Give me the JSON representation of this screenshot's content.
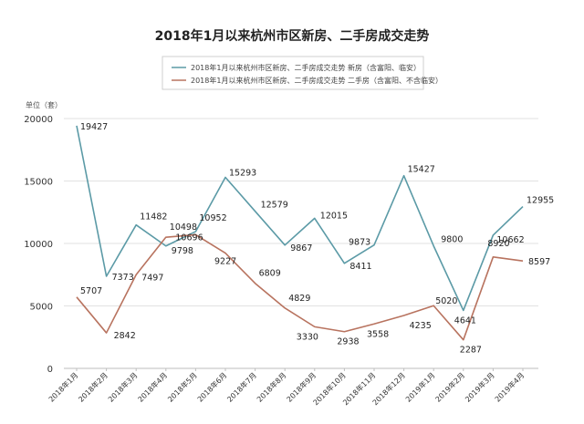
{
  "chart_data": {
    "type": "line",
    "title": "2018年1月以来杭州市区新房、二手房成交走势",
    "unit_label": "单位（套）",
    "categories": [
      "2018年1月",
      "2018年2月",
      "2018年3月",
      "2018年4月",
      "2018年5月",
      "2018年6月",
      "2018年7月",
      "2018年8月",
      "2018年9月",
      "2018年10月",
      "2018年11月",
      "2018年12月",
      "2019年1月",
      "2019年2月",
      "2019年3月",
      "2019年4月"
    ],
    "series": [
      {
        "name": "2018年1月以来杭州市区新房、二手房成交走势  新房（含富阳、临安）",
        "color": "#5b9aa6",
        "values": [
          19427,
          7373,
          11482,
          9798,
          10952,
          15293,
          12579,
          9867,
          12015,
          8411,
          9873,
          15427,
          9800,
          4641,
          10662,
          12955
        ]
      },
      {
        "name": "2018年1月以来杭州市区新房、二手房成交走势  二手房（含富阳、不含临安）",
        "color": "#b8735f",
        "values": [
          5707,
          2842,
          7497,
          10498,
          10696,
          9227,
          6809,
          4829,
          3330,
          2938,
          3558,
          4235,
          5020,
          2287,
          8920,
          8597
        ]
      }
    ],
    "yticks": [
      0,
      5000,
      10000,
      15000,
      20000
    ],
    "ylim": [
      0,
      20000
    ],
    "grid": "horizontal",
    "legend_position": "top-center"
  }
}
